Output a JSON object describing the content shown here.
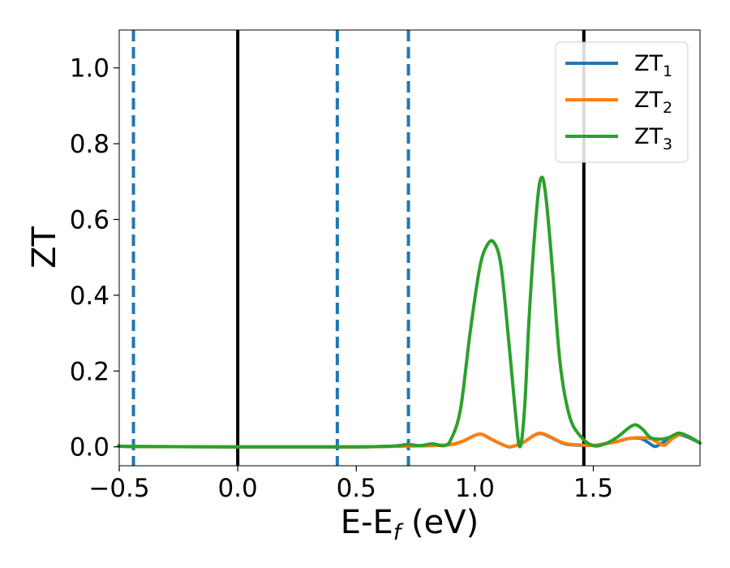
{
  "chart_data": {
    "type": "line",
    "xlabel": "E-E",
    "xlabel_sub": "f",
    "xlabel_unit": " (eV)",
    "ylabel": "ZT",
    "xlim": [
      -0.5,
      1.95
    ],
    "ylim": [
      -0.05,
      1.1
    ],
    "xticks": [
      -0.5,
      0.0,
      0.5,
      1.0,
      1.5
    ],
    "xtick_labels": [
      "−0.5",
      "0.0",
      "0.5",
      "1.0",
      "1.5"
    ],
    "yticks": [
      0.0,
      0.2,
      0.4,
      0.6,
      0.8,
      1.0
    ],
    "ytick_labels": [
      "0.0",
      "0.2",
      "0.4",
      "0.6",
      "0.8",
      "1.0"
    ],
    "grid": false,
    "legend_position": "top-right",
    "vlines": [
      {
        "x": -0.44,
        "style": "dashed",
        "color": "#1f77b4"
      },
      {
        "x": 0.0,
        "style": "solid",
        "color": "#000000"
      },
      {
        "x": 0.42,
        "style": "dashed",
        "color": "#1f77b4"
      },
      {
        "x": 0.72,
        "style": "dashed",
        "color": "#1f77b4"
      },
      {
        "x": 1.46,
        "style": "solid",
        "color": "#000000"
      }
    ],
    "series": [
      {
        "name": "ZT",
        "sub": "1",
        "color": "#1f77b4",
        "points": [
          [
            -0.5,
            0.003
          ],
          [
            -0.45,
            0.001
          ],
          [
            0.0,
            0.0
          ],
          [
            0.5,
            0.0
          ],
          [
            0.7,
            0.002
          ],
          [
            0.8,
            0.003
          ],
          [
            0.9,
            0.006
          ],
          [
            0.95,
            0.015
          ],
          [
            1.0,
            0.03
          ],
          [
            1.03,
            0.033
          ],
          [
            1.07,
            0.02
          ],
          [
            1.12,
            0.005
          ],
          [
            1.15,
            0.0
          ],
          [
            1.2,
            0.01
          ],
          [
            1.25,
            0.03
          ],
          [
            1.28,
            0.035
          ],
          [
            1.32,
            0.025
          ],
          [
            1.38,
            0.008
          ],
          [
            1.45,
            0.004
          ],
          [
            1.5,
            0.004
          ],
          [
            1.55,
            0.008
          ],
          [
            1.6,
            0.014
          ],
          [
            1.65,
            0.022
          ],
          [
            1.7,
            0.022
          ],
          [
            1.73,
            0.012
          ],
          [
            1.76,
            0.001
          ],
          [
            1.79,
            0.01
          ],
          [
            1.82,
            0.022
          ],
          [
            1.86,
            0.032
          ],
          [
            1.9,
            0.025
          ],
          [
            1.95,
            0.01
          ]
        ]
      },
      {
        "name": "ZT",
        "sub": "2",
        "color": "#ff7f0e",
        "points": [
          [
            -0.5,
            0.003
          ],
          [
            -0.45,
            0.001
          ],
          [
            0.0,
            0.0
          ],
          [
            0.5,
            0.0
          ],
          [
            0.7,
            0.002
          ],
          [
            0.8,
            0.003
          ],
          [
            0.9,
            0.006
          ],
          [
            0.95,
            0.015
          ],
          [
            1.0,
            0.03
          ],
          [
            1.03,
            0.033
          ],
          [
            1.07,
            0.02
          ],
          [
            1.12,
            0.005
          ],
          [
            1.15,
            0.0
          ],
          [
            1.2,
            0.01
          ],
          [
            1.25,
            0.03
          ],
          [
            1.28,
            0.036
          ],
          [
            1.32,
            0.026
          ],
          [
            1.38,
            0.009
          ],
          [
            1.45,
            0.005
          ],
          [
            1.5,
            0.004
          ],
          [
            1.55,
            0.008
          ],
          [
            1.6,
            0.014
          ],
          [
            1.65,
            0.022
          ],
          [
            1.7,
            0.024
          ],
          [
            1.74,
            0.022
          ],
          [
            1.77,
            0.012
          ],
          [
            1.8,
            0.004
          ],
          [
            1.83,
            0.02
          ],
          [
            1.87,
            0.033
          ],
          [
            1.91,
            0.024
          ],
          [
            1.95,
            0.01
          ]
        ]
      },
      {
        "name": "ZT",
        "sub": "3",
        "color": "#2ca02c",
        "points": [
          [
            -0.5,
            0.003
          ],
          [
            -0.45,
            0.001
          ],
          [
            0.0,
            0.0
          ],
          [
            0.5,
            0.0
          ],
          [
            0.65,
            0.002
          ],
          [
            0.72,
            0.006
          ],
          [
            0.77,
            0.003
          ],
          [
            0.82,
            0.008
          ],
          [
            0.87,
            0.003
          ],
          [
            0.9,
            0.02
          ],
          [
            0.94,
            0.1
          ],
          [
            0.98,
            0.3
          ],
          [
            1.02,
            0.47
          ],
          [
            1.05,
            0.53
          ],
          [
            1.08,
            0.54
          ],
          [
            1.11,
            0.48
          ],
          [
            1.14,
            0.3
          ],
          [
            1.17,
            0.1
          ],
          [
            1.19,
            0.0
          ],
          [
            1.21,
            0.1
          ],
          [
            1.23,
            0.35
          ],
          [
            1.26,
            0.62
          ],
          [
            1.28,
            0.71
          ],
          [
            1.3,
            0.66
          ],
          [
            1.33,
            0.45
          ],
          [
            1.36,
            0.22
          ],
          [
            1.4,
            0.08
          ],
          [
            1.45,
            0.025
          ],
          [
            1.5,
            0.003
          ],
          [
            1.55,
            0.008
          ],
          [
            1.6,
            0.025
          ],
          [
            1.65,
            0.05
          ],
          [
            1.68,
            0.058
          ],
          [
            1.71,
            0.045
          ],
          [
            1.74,
            0.025
          ],
          [
            1.78,
            0.02
          ],
          [
            1.82,
            0.025
          ],
          [
            1.86,
            0.036
          ],
          [
            1.9,
            0.028
          ],
          [
            1.95,
            0.01
          ]
        ]
      }
    ]
  }
}
